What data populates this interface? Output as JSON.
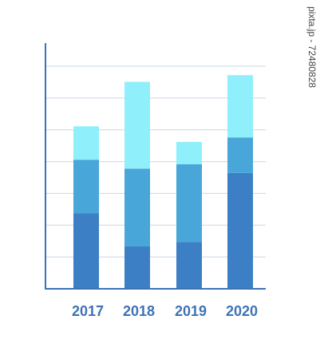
{
  "watermark_text": "pixta.jp - 72480828",
  "colors": {
    "axis": "#3f72b5",
    "grid": "#c9d7e6",
    "tick_label": "#3f72b5",
    "series": [
      "#3d7fc4",
      "#48a6d9",
      "#8ff0fb"
    ]
  },
  "chart_data": {
    "type": "bar",
    "stacked": true,
    "title": "",
    "xlabel": "",
    "ylabel": "",
    "categories": [
      "2017",
      "2018",
      "2019",
      "2020"
    ],
    "series": [
      {
        "values": [
          3.4,
          1.9,
          2.1,
          5.2
        ]
      },
      {
        "values": [
          2.4,
          3.5,
          3.5,
          1.6
        ]
      },
      {
        "values": [
          1.5,
          3.9,
          1.0,
          2.8
        ]
      }
    ],
    "ylim": [
      0,
      10
    ],
    "grid": true,
    "legend": "none"
  }
}
